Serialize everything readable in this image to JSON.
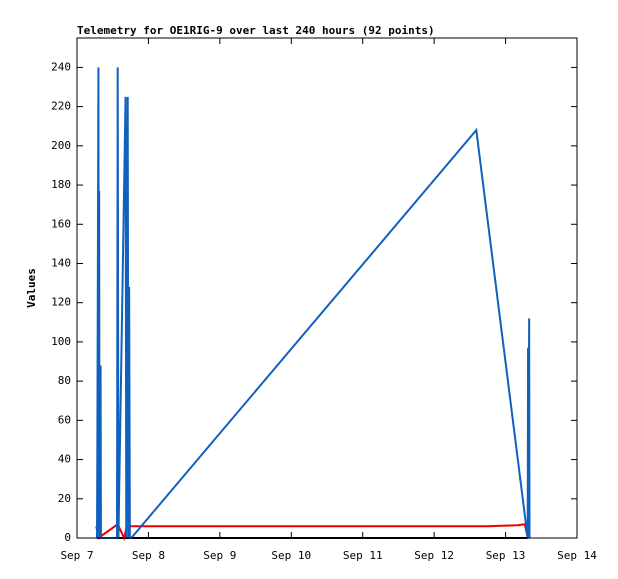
{
  "chart_data": {
    "type": "line",
    "title": "Telemetry for OE1RIG-9 over last 240 hours (92 points)",
    "y_label": "Values",
    "xlim": [
      7,
      14
    ],
    "xticks": [
      {
        "value": 7,
        "label": "Sep 7"
      },
      {
        "value": 8,
        "label": "Sep 8"
      },
      {
        "value": 9,
        "label": "Sep 9"
      },
      {
        "value": 10,
        "label": "Sep 10"
      },
      {
        "value": 11,
        "label": "Sep 11"
      },
      {
        "value": 12,
        "label": "Sep 12"
      },
      {
        "value": 13,
        "label": "Sep 13"
      },
      {
        "value": 14,
        "label": "Sep 14"
      }
    ],
    "ylim": [
      0,
      255
    ],
    "yticks": [
      0,
      20,
      40,
      60,
      80,
      100,
      120,
      140,
      160,
      180,
      200,
      220,
      240
    ],
    "series": [
      {
        "color": "#000000",
        "x": [
          7.28,
          13.31
        ],
        "values": [
          0,
          0
        ]
      },
      {
        "color": "#ee0000",
        "x": [
          7.27,
          7.3,
          7.57,
          7.66,
          7.7,
          12.75,
          13.17,
          13.27,
          13.31
        ],
        "values": [
          6,
          0,
          7,
          0,
          6,
          6,
          6.5,
          7,
          0
        ]
      },
      {
        "color": "#1060c0",
        "x": [
          7.28,
          7.285,
          7.3,
          7.305,
          7.31,
          7.315,
          7.33,
          7.335,
          7.56,
          7.57,
          7.58,
          7.68,
          7.69,
          7.7,
          7.71,
          7.72,
          7.73,
          7.74,
          7.76,
          12.59,
          13.31,
          13.315,
          13.32,
          13.33,
          13.335
        ],
        "values": [
          0,
          48,
          240,
          0,
          177,
          0,
          88,
          0,
          0,
          240,
          0,
          225,
          0,
          80,
          225,
          0,
          128,
          0,
          0,
          208,
          0,
          97,
          0,
          112,
          0
        ]
      }
    ]
  }
}
